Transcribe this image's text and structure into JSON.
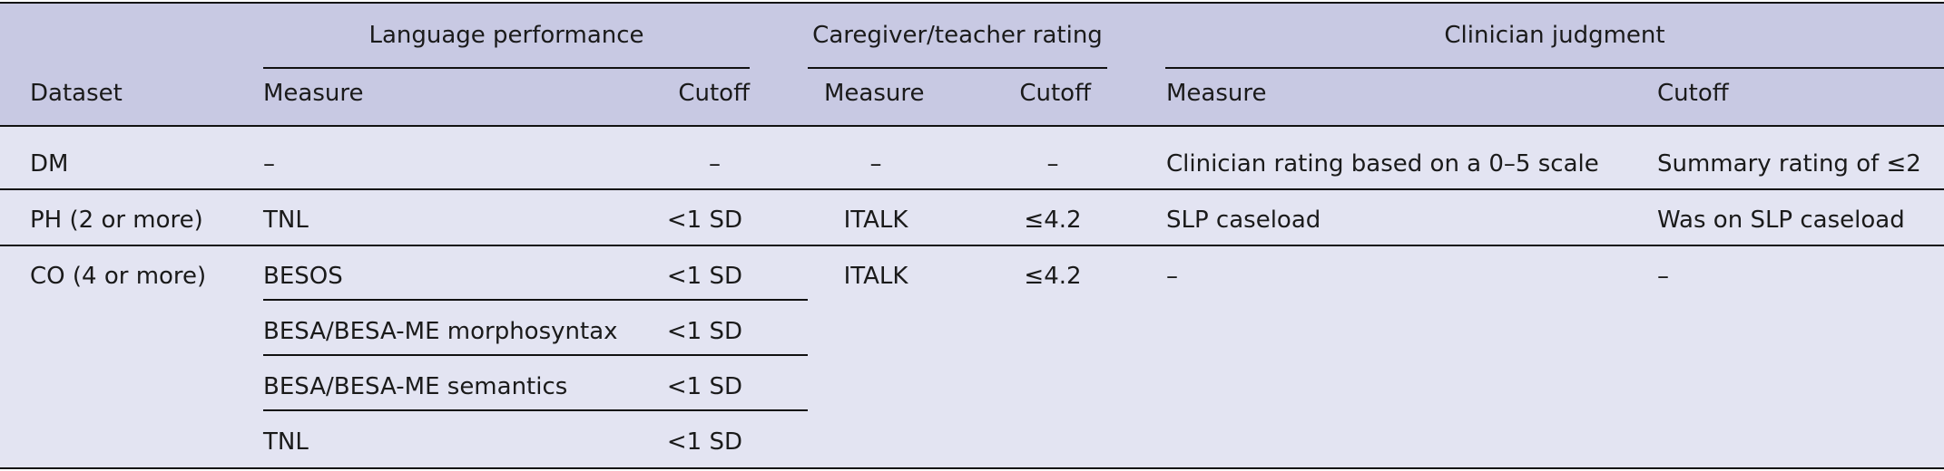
{
  "table": {
    "group_headers": {
      "language": "Language performance",
      "caregiver": "Caregiver/teacher rating",
      "clinician": "Clinician judgment"
    },
    "sub_headers": {
      "dataset": "Dataset",
      "lang_measure": "Measure",
      "lang_cutoff": "Cutoff",
      "care_measure": "Measure",
      "care_cutoff": "Cutoff",
      "clin_measure": "Measure",
      "clin_cutoff": "Cutoff"
    },
    "rows": {
      "dm": {
        "dataset": "DM",
        "lang_measure": "–",
        "lang_cutoff": "–",
        "care_measure": "–",
        "care_cutoff": "–",
        "clin_measure": "Clinician rating based on a 0–5 scale",
        "clin_cutoff": "Summary rating of ≤2"
      },
      "ph": {
        "dataset": "PH (2 or more)",
        "lang_measure": "TNL",
        "lang_cutoff": "<1 SD",
        "care_measure": "ITALK",
        "care_cutoff": "≤4.2",
        "clin_measure": "SLP caseload",
        "clin_cutoff": "Was on SLP caseload"
      },
      "co": {
        "dataset": "CO (4 or more)",
        "care_measure": "ITALK",
        "care_cutoff": "≤4.2",
        "clin_measure": "–",
        "clin_cutoff": "–",
        "lang_sub": [
          {
            "measure": "BESOS",
            "cutoff": "<1 SD"
          },
          {
            "measure": "BESA/BESA-ME morphosyntax",
            "cutoff": "<1 SD"
          },
          {
            "measure": "BESA/BESA-ME semantics",
            "cutoff": "<1 SD"
          },
          {
            "measure": "TNL",
            "cutoff": "<1 SD"
          }
        ]
      }
    }
  }
}
